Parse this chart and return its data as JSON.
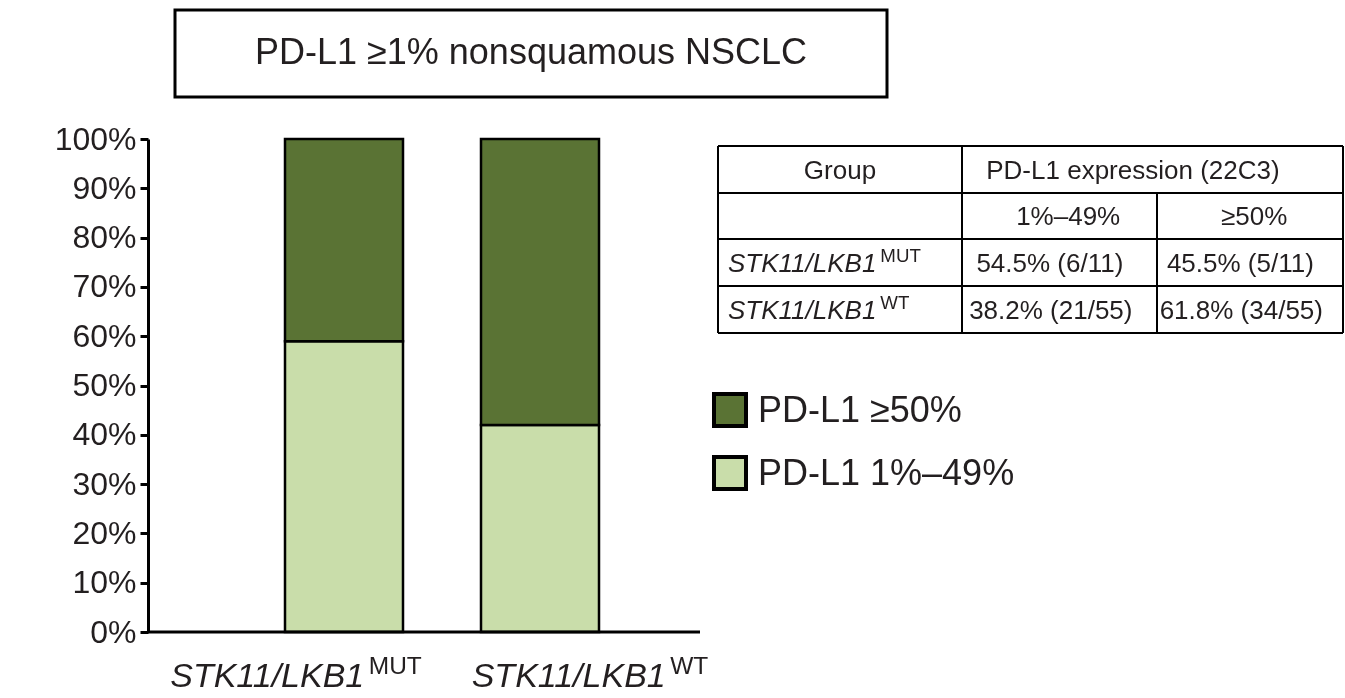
{
  "chart_data": {
    "type": "bar",
    "title": "PD-L1 ≥1% nonsquamous NSCLC",
    "categories": [
      "STK11/LKB1$^{MUT}$",
      "STK11/LKB1$^{WT}$"
    ],
    "stacked": true,
    "series": [
      {
        "name": "PD-L1 1%–49%",
        "color": "#c9ddaa",
        "values": [
          59,
          42
        ]
      },
      {
        "name": "PD-L1 ≥50%",
        "color": "#5a7334",
        "values": [
          41,
          58
        ]
      }
    ],
    "ylim": [
      0,
      100
    ],
    "yticks": [
      {
        "value": 0,
        "label": "0%"
      },
      {
        "value": 10,
        "label": "10%"
      },
      {
        "value": 20,
        "label": "20%"
      },
      {
        "value": 30,
        "label": "30%"
      },
      {
        "value": 40,
        "label": "40%"
      },
      {
        "value": 50,
        "label": "50%"
      },
      {
        "value": 60,
        "label": "60%"
      },
      {
        "value": 70,
        "label": "70%"
      },
      {
        "value": 80,
        "label": "80%"
      },
      {
        "value": 90,
        "label": "90%"
      },
      {
        "value": 100,
        "label": "100%"
      }
    ],
    "grid": false,
    "legend": "right",
    "annotations": [
      "Group",
      "PD-L1 expression (22C3)",
      "1%–49%",
      "≥50%",
      "STK11/LKB1$^{MUT}$",
      "54.5% (6/11)",
      "45.5% (5/11)",
      "STK11/LKB1$^{WT}$",
      "38.2% (21/55)",
      "61.8% (34/55)"
    ]
  }
}
